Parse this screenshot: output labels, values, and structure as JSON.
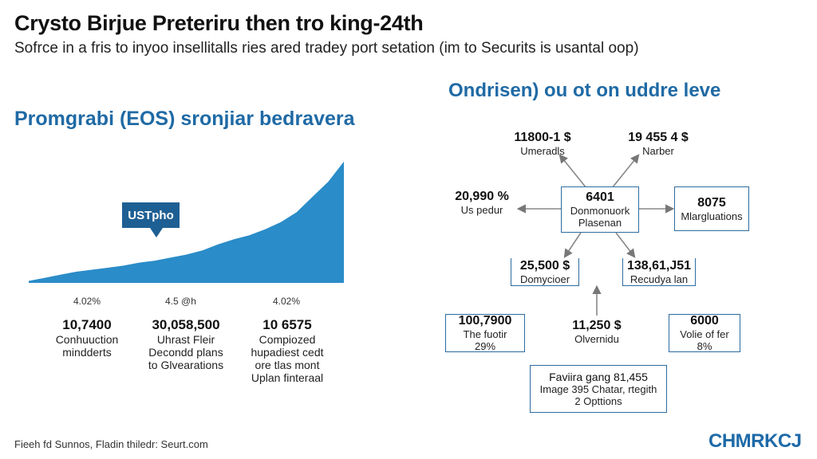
{
  "header": {
    "title": "Crysto Birjue Preteriru then tro king-24th",
    "subtitle": "Sofrce in a fris to inyoo insellitalls ries ared tradey port setation (im to Securits is usantal oop)"
  },
  "left_panel": {
    "heading": "Promgrabi (EOS) sronjiar bedravera",
    "callout": "USTpho",
    "ticks": [
      "4.02%",
      "4.5 @h",
      "4.02%"
    ],
    "stats": [
      {
        "value": "10,7400",
        "label_lines": [
          "Conhuuction",
          "mindderts"
        ]
      },
      {
        "value": "30,058,500",
        "label_lines": [
          "Uhrast Fleir",
          "Decondd plans",
          "to Glvearations"
        ]
      },
      {
        "value": "10 6575",
        "label_lines": [
          "Compiozed",
          "hupadiest cedt",
          "ore tlas mont",
          "Uplan finteraal"
        ]
      }
    ]
  },
  "chart_data": {
    "type": "area",
    "title": "",
    "xlabel": "",
    "ylabel": "",
    "x": [
      0,
      1,
      2,
      3,
      4,
      5,
      6,
      7,
      8,
      9,
      10,
      11,
      12,
      13,
      14,
      15,
      16,
      17,
      18,
      19,
      20
    ],
    "values": [
      2,
      5,
      8,
      11,
      13,
      15,
      17,
      20,
      22,
      25,
      28,
      32,
      38,
      43,
      47,
      53,
      60,
      70,
      85,
      100,
      120
    ],
    "ylim": [
      0,
      130
    ],
    "grid": false,
    "legend": "none",
    "color": "#2a8cc8"
  },
  "right_panel": {
    "heading": "Ondrisen) ou ot on uddre leve",
    "center": {
      "value": "6401",
      "label_lines": [
        "Donmonuork",
        "Plasenan"
      ]
    },
    "top_left": {
      "value": "11800-1 $",
      "label": "Umeradls"
    },
    "top_right": {
      "value": "19 455 4 $",
      "label": "Narber"
    },
    "left": {
      "value": "20,990 %",
      "label": "Us pedur"
    },
    "right": {
      "value": "8075",
      "label": "Mlargluations"
    },
    "bottom_left": {
      "value": "25,500 $",
      "label": "Domycioer"
    },
    "bottom_right": {
      "value": "138,61,J51",
      "label": "Recudya lan"
    },
    "row_left": {
      "value": "100,7900",
      "label_lines": [
        "The fuotir",
        "29%"
      ]
    },
    "row_center": {
      "value": "11,250 $",
      "label": "Olvernidu"
    },
    "row_right": {
      "value": "6000",
      "label_lines": [
        "Volie of fer",
        "8%"
      ]
    },
    "bottom_box": {
      "line1": "Faviira gang 81,455",
      "line2": "Image 395 Chatar, rtegith",
      "line3": "2 Opttions"
    }
  },
  "footer": {
    "source": "Fieeh fd Sunnos, Fladin thiledr: Seurt.com",
    "logo": "CHMRKCJ"
  },
  "colors": {
    "accent": "#1f6aa5",
    "area_fill": "#2a8cc8",
    "box_border": "#2d6ca0"
  }
}
